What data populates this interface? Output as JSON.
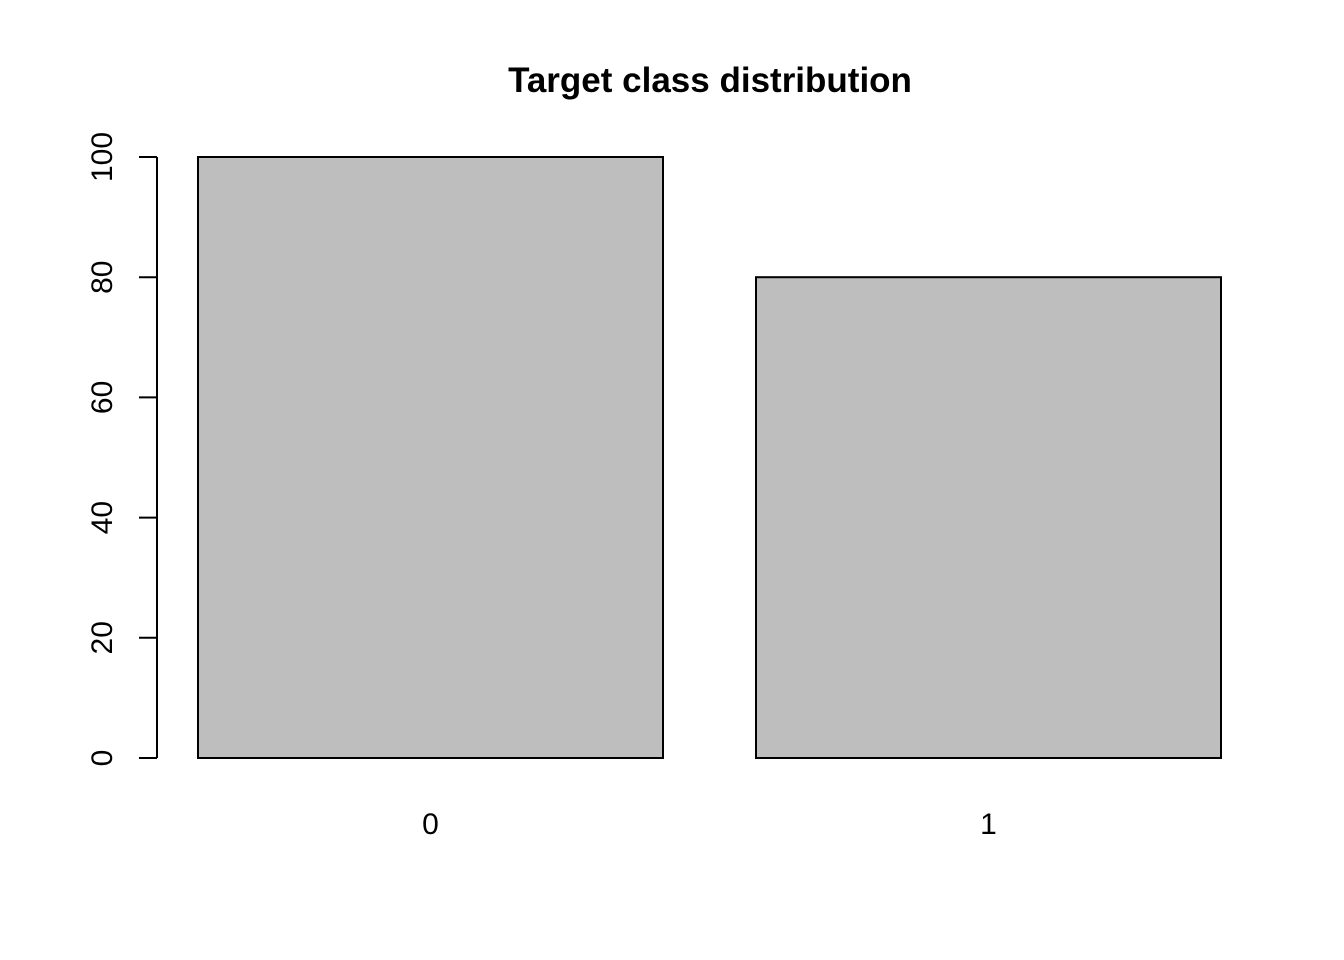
{
  "chart_data": {
    "type": "bar",
    "title": "Target class distribution",
    "xlabel": "",
    "ylabel": "",
    "categories": [
      "0",
      "1"
    ],
    "values": [
      100,
      80
    ],
    "ylim": [
      0,
      100
    ],
    "yticks": [
      0,
      20,
      40,
      60,
      80,
      100
    ],
    "ytick_labels": [
      "0",
      "20",
      "40",
      "60",
      "80",
      "100"
    ],
    "bar_color": "#BEBEBE",
    "grid": false,
    "legend": "none"
  }
}
